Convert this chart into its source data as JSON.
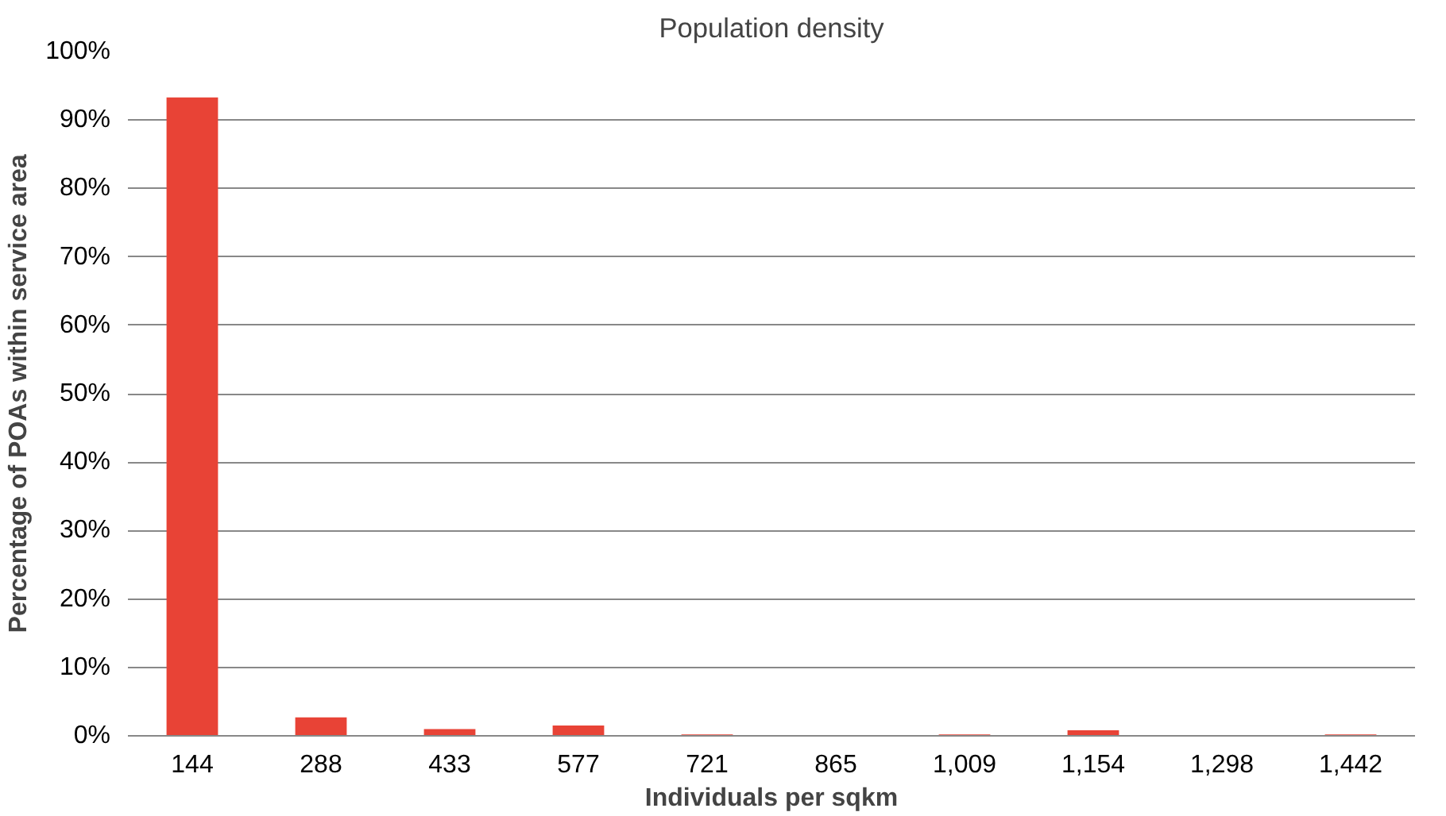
{
  "chart_data": {
    "type": "bar",
    "title": "Population density",
    "xlabel": "Individuals per sqkm",
    "ylabel": "Percentage of POAs within service area",
    "categories": [
      "144",
      "288",
      "433",
      "577",
      "721",
      "865",
      "1,009",
      "1,154",
      "1,298",
      "1,442"
    ],
    "values": [
      93.3,
      2.7,
      1.0,
      1.5,
      0.2,
      0,
      0.2,
      0.8,
      0,
      0.2
    ],
    "color": "#e84336",
    "ylim": [
      0,
      100
    ],
    "yticks": [
      {
        "value": 0,
        "label": "0%"
      },
      {
        "value": 10,
        "label": "10%"
      },
      {
        "value": 20,
        "label": "20%"
      },
      {
        "value": 30,
        "label": "30%"
      },
      {
        "value": 40,
        "label": "40%"
      },
      {
        "value": 50,
        "label": "50%"
      },
      {
        "value": 60,
        "label": "60%"
      },
      {
        "value": 70,
        "label": "70%"
      },
      {
        "value": 80,
        "label": "80%"
      },
      {
        "value": 90,
        "label": "90%"
      },
      {
        "value": 100,
        "label": "100%"
      }
    ],
    "grid": "y"
  }
}
